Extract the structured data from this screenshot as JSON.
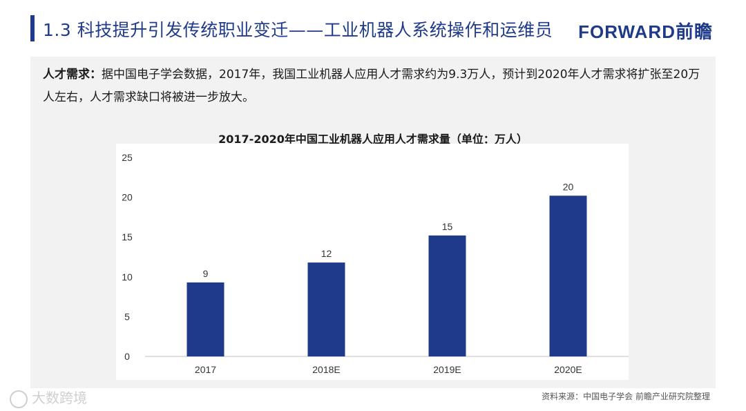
{
  "header": {
    "title": "1.3 科技提升引发传统职业变迁——工业机器人系统操作和运维员",
    "brand": "FORWARD前瞻"
  },
  "intro": {
    "lead": "人才需求：",
    "text": "据中国电子学会数据，2017年，我国工业机器人应用人才需求约为9.3万人，预计到2020年人才需求将扩张至20万人左右，人才需求缺口将被进一步放大。"
  },
  "chart_data": {
    "type": "bar",
    "title": "2017-2020年中国工业机器人应用人才需求量（单位：万人）",
    "categories": [
      "2017",
      "2018E",
      "2019E",
      "2020E"
    ],
    "values": [
      9.3,
      11.8,
      15.2,
      20.2
    ],
    "data_labels": [
      "9",
      "12",
      "15",
      "20"
    ],
    "ylim": [
      0,
      25
    ],
    "yticks": [
      0,
      5,
      10,
      15,
      20,
      25
    ],
    "xlabel": "",
    "ylabel": "",
    "grid": false,
    "bar_color": "#1f3a8a"
  },
  "footer": {
    "source": "资料来源：中国电子学会 前瞻产业研究院整理",
    "watermark": "大数跨境"
  }
}
